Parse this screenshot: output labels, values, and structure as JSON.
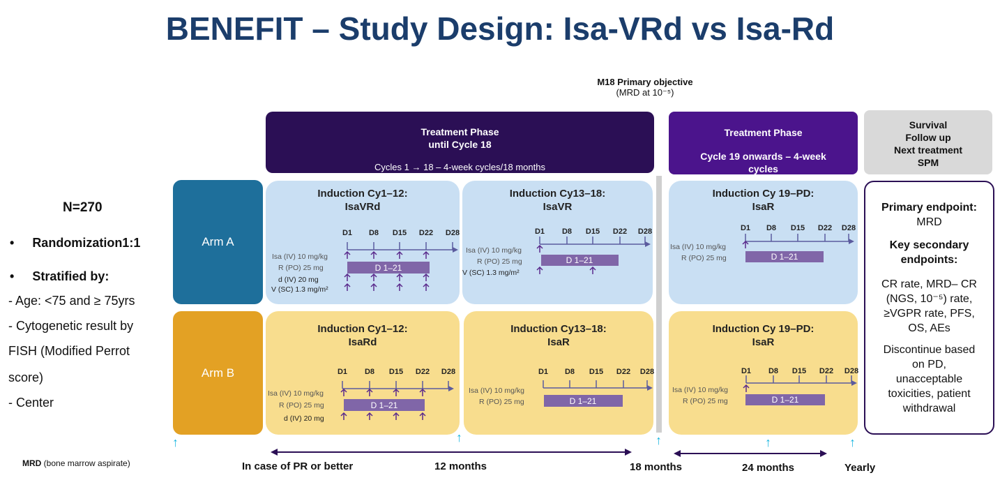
{
  "title": "BENEFIT – Study Design: Isa-VRd vs Isa-Rd",
  "objective": {
    "heading": "M18 Primary objective",
    "detail": "(MRD at 10⁻⁵)"
  },
  "phase1": {
    "line1": "Treatment Phase",
    "line2": "until Cycle 18",
    "cycles": "Cycles 1 → 18 – 4-week cycles/18 months"
  },
  "phase2": {
    "line1": "Treatment Phase",
    "line2": "Cycle 19 onwards – 4-week",
    "line3": "cycles"
  },
  "survival": {
    "lines": [
      "Survival",
      "Follow up",
      "Next treatment",
      "SPM"
    ]
  },
  "left": {
    "n": "N=270",
    "randomization": "Randomization1:1",
    "stratified": "Stratified by:",
    "age": "- Age: <75 and ≥ 75yrs",
    "cyto1": "- Cytogenetic result by",
    "cyto2": "FISH (Modified Perrot",
    "cyto3": "score)",
    "center": "- Center"
  },
  "arms": {
    "a": "Arm A",
    "b": "Arm B"
  },
  "days": [
    "D1",
    "D8",
    "D15",
    "D22",
    "D28"
  ],
  "bar_label": "D 1–21",
  "panels": {
    "a1": {
      "t1": "Induction Cy1–12:",
      "t2": "IsaVRd",
      "isa": "Isa (IV) 10 mg/kg",
      "r": "R (PO) 25 mg",
      "d": "d (IV) 20 mg",
      "v": "V (SC) 1.3 mg/m²"
    },
    "a2": {
      "t1": "Induction Cy13–18:",
      "t2": "IsaVR",
      "isa": "Isa (IV) 10 mg/kg",
      "r": "R (PO) 25 mg",
      "v": "V (SC) 1.3 mg/m²"
    },
    "a3": {
      "t1": "Induction Cy 19–PD:",
      "t2": "IsaR",
      "isa": "Isa (IV) 10 mg/kg",
      "r": "R (PO) 25 mg"
    },
    "b1": {
      "t1": "Induction Cy1–12:",
      "t2": "IsaRd",
      "isa": "Isa (IV) 10 mg/kg",
      "r": "R (PO) 25 mg",
      "d": "d (IV) 20 mg"
    },
    "b2": {
      "t1": "Induction Cy13–18:",
      "t2": "IsaR",
      "isa": "Isa (IV) 10 mg/kg",
      "r": "R (PO) 25 mg"
    },
    "b3": {
      "t1": "Induction Cy 19–PD:",
      "t2": "IsaR",
      "isa": "Isa (IV) 10 mg/kg",
      "r": "R (PO) 25 mg"
    }
  },
  "endpoints": {
    "primary_h": "Primary endpoint:",
    "primary": "MRD",
    "secondary_h1": "Key secondary",
    "secondary_h2": "endpoints:",
    "sec1": "CR rate, MRD– CR",
    "sec2": "(NGS, 10⁻⁵) rate,",
    "sec3": "≥VGPR rate, PFS,",
    "sec4": "OS, AEs",
    "disc1": "Discontinue based",
    "disc2": "on PD,",
    "disc3": "unacceptable",
    "disc4": "toxicities, patient",
    "disc5": "withdrawal"
  },
  "bottom": {
    "mrd_b": "MRD",
    "mrd": "(bone marrow aspirate)",
    "pr": "In case of PR or better",
    "m12": "12 months",
    "m18": "18 months",
    "m24": "24 months",
    "yearly": "Yearly"
  },
  "colors": {
    "arm_a": "#1e6f9b",
    "arm_b": "#e3a124",
    "bar": "#8066a8",
    "arrow": "#5a2a8c",
    "cyan": "#19b6e0"
  }
}
